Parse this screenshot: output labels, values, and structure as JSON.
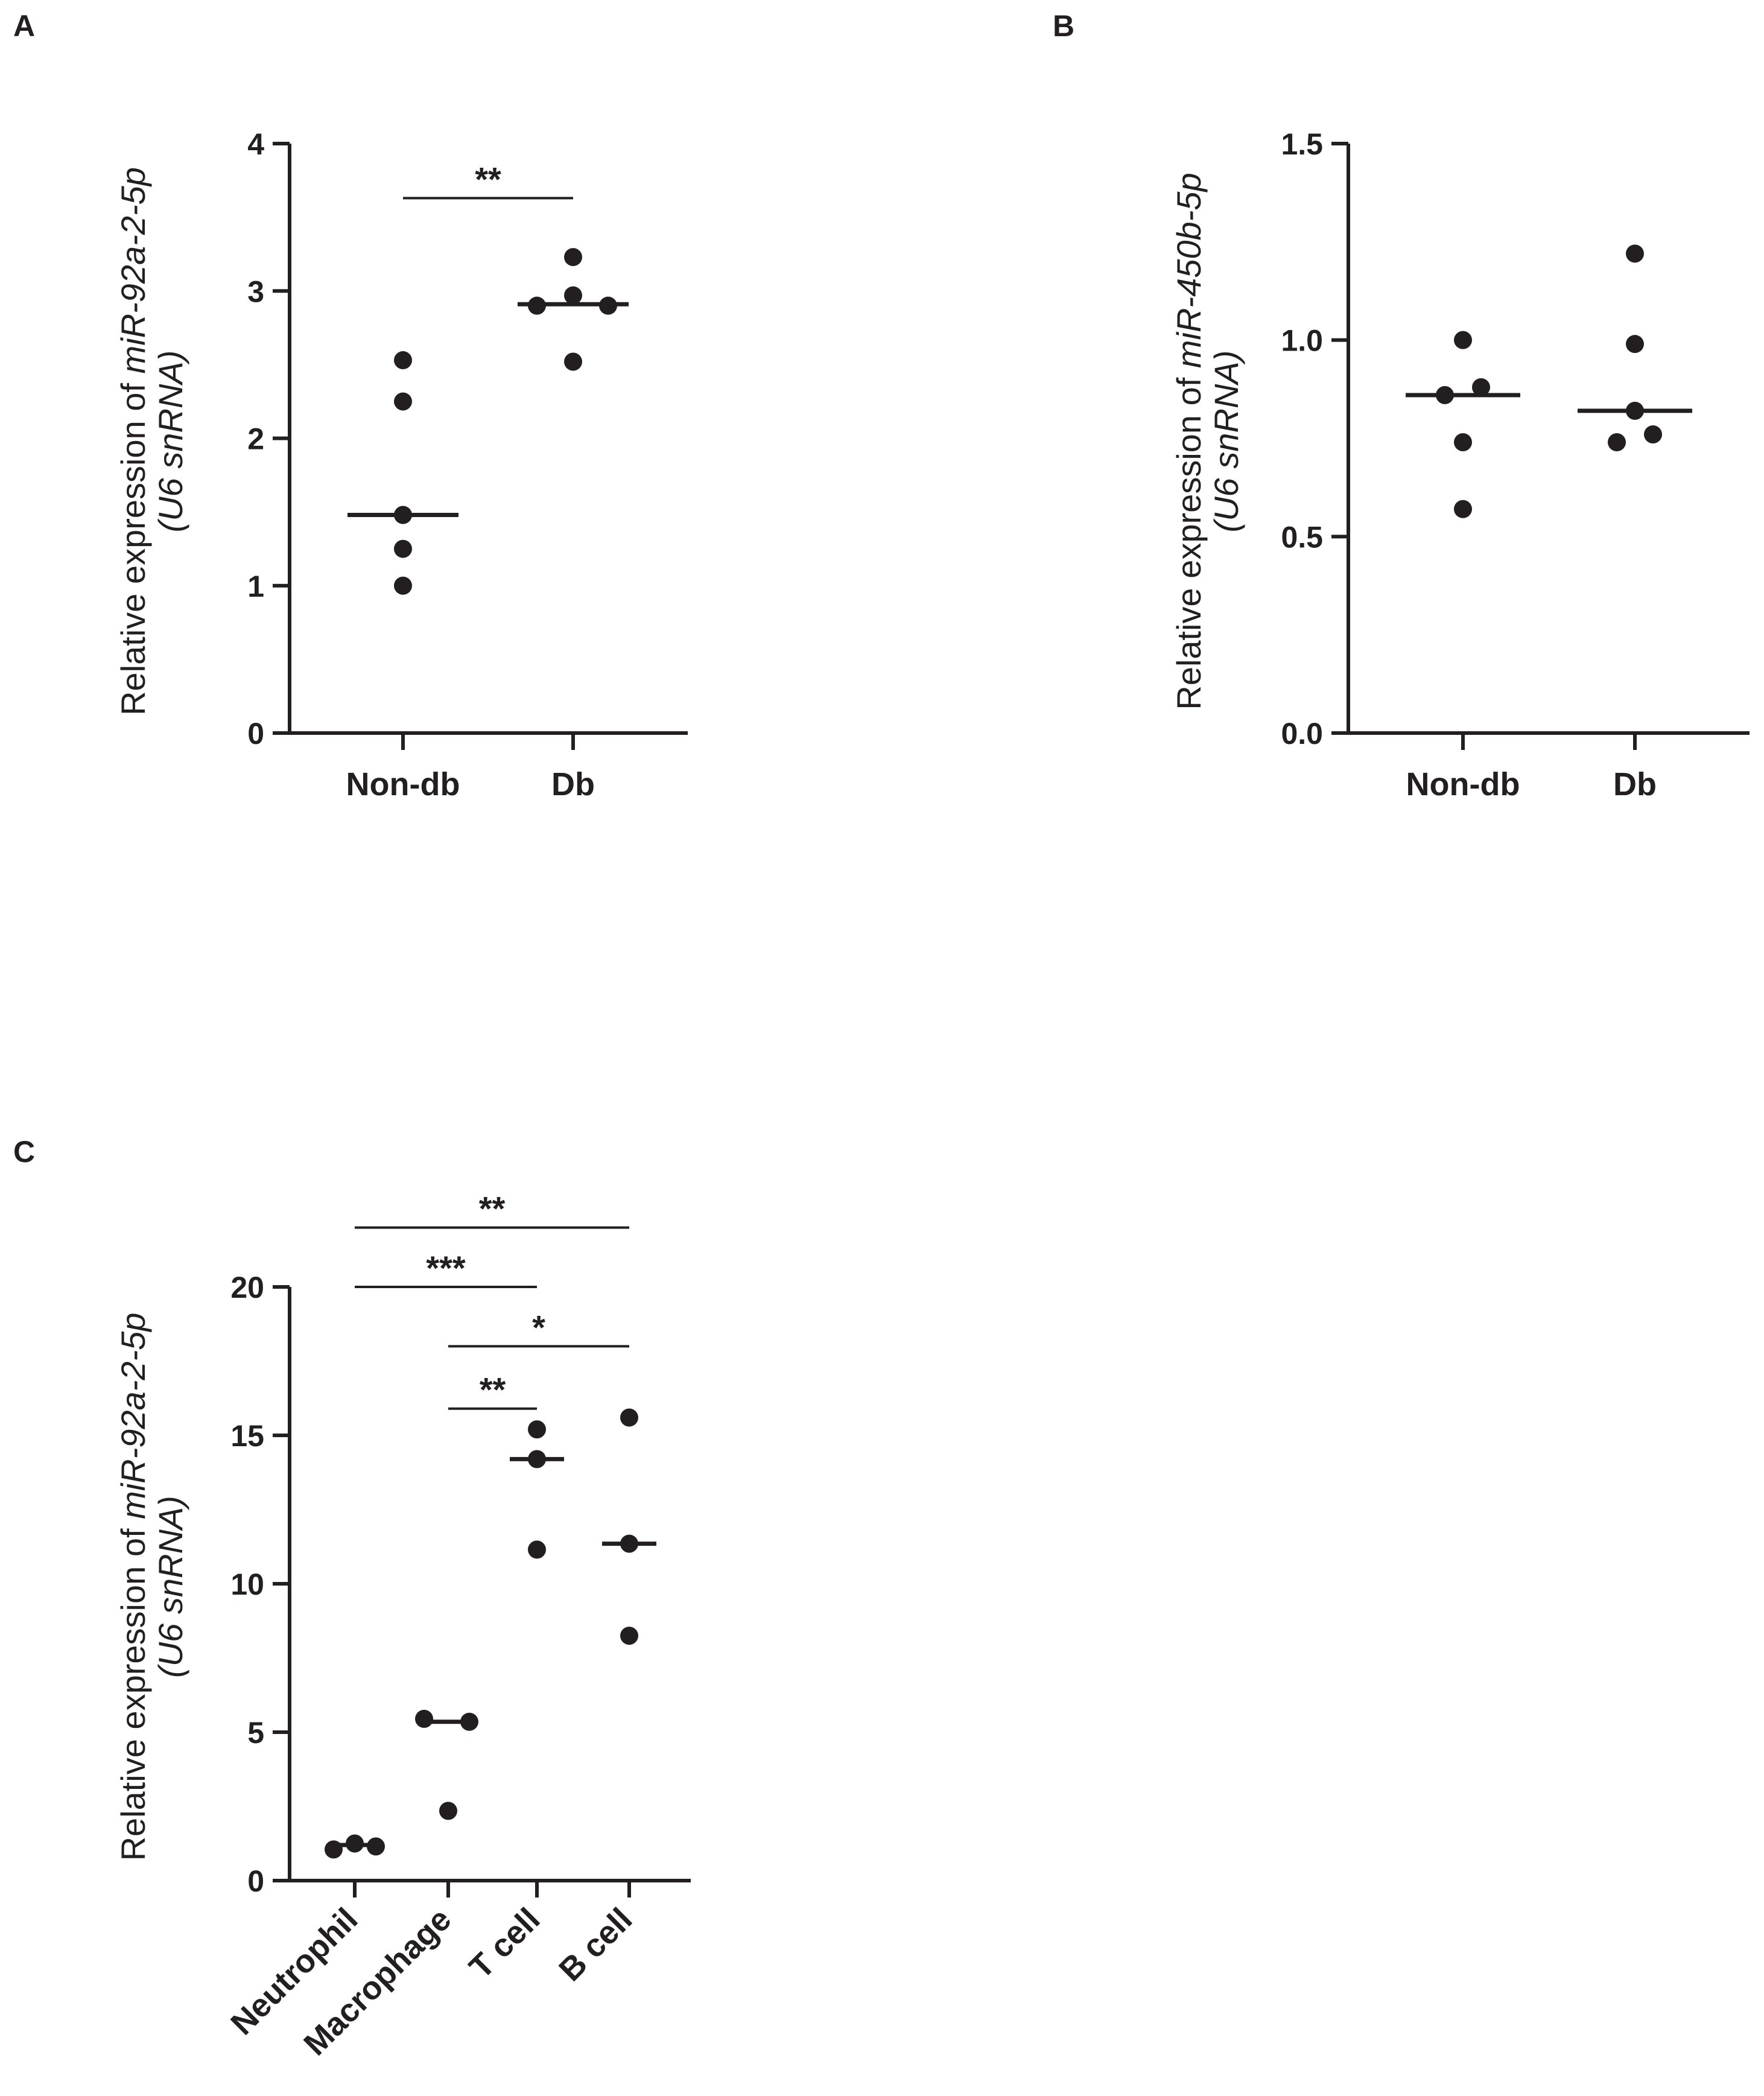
{
  "chart_data": [
    {
      "panel": "A",
      "type": "scatter",
      "categories": [
        "Non-db",
        "Db"
      ],
      "ylim": [
        0,
        4
      ],
      "yticks": [
        "0",
        "1",
        "2",
        "3",
        "4"
      ],
      "ylabel_prefix": "Relative expression of ",
      "ylabel_italic": "miR-92a-2-5p",
      "ylabel_line2": "(U6 snRNA)",
      "series": [
        {
          "name": "Non-db",
          "values": [
            1.0,
            1.25,
            1.48,
            2.25,
            2.53
          ],
          "median": 1.48
        },
        {
          "name": "Db",
          "values": [
            2.52,
            2.9,
            2.97,
            2.9,
            3.23
          ],
          "median": 2.91
        }
      ],
      "significance": [
        {
          "from": "Non-db",
          "to": "Db",
          "label": "**",
          "y": 3.63
        }
      ]
    },
    {
      "panel": "B",
      "type": "scatter",
      "categories": [
        "Non-db",
        "Db"
      ],
      "ylim": [
        0,
        1.5
      ],
      "yticks": [
        "0.0",
        "0.5",
        "1.0",
        "1.5"
      ],
      "ylabel_prefix": "Relative expression of ",
      "ylabel_italic": "miR-450b-5p",
      "ylabel_line2": "(U6 snRNA)",
      "series": [
        {
          "name": "Non-db",
          "values": [
            0.57,
            0.74,
            0.86,
            0.88,
            1.0
          ],
          "median": 0.86
        },
        {
          "name": "Db",
          "values": [
            0.74,
            0.76,
            0.82,
            0.99,
            1.22
          ],
          "median": 0.82
        }
      ],
      "significance": []
    },
    {
      "panel": "C",
      "type": "scatter",
      "categories": [
        "Neutrophil",
        "Macrophage",
        "T cell",
        "B cell"
      ],
      "ylim": [
        0,
        20
      ],
      "yticks": [
        "0",
        "5",
        "10",
        "15",
        "20"
      ],
      "ylabel_prefix": "Relative expression of ",
      "ylabel_italic": "miR-92a-2-5p",
      "ylabel_line2": "(U6 snRNA)",
      "series": [
        {
          "name": "Neutrophil",
          "values": [
            1.05,
            1.25,
            1.15
          ],
          "median": 1.2
        },
        {
          "name": "Macrophage",
          "values": [
            5.45,
            5.35,
            2.35
          ],
          "median": 5.35
        },
        {
          "name": "T cell",
          "values": [
            15.2,
            14.2,
            11.15
          ],
          "median": 14.2
        },
        {
          "name": "B cell",
          "values": [
            15.6,
            11.35,
            8.25
          ],
          "median": 11.35
        }
      ],
      "significance": [
        {
          "from": "Neutrophil",
          "to": "B cell",
          "label": "**",
          "y": 22.0
        },
        {
          "from": "Neutrophil",
          "to": "T cell",
          "label": "***",
          "y": 20.0
        },
        {
          "from": "Macrophage",
          "to": "B cell",
          "label": "*",
          "y": 18.0
        },
        {
          "from": "Macrophage",
          "to": "T cell",
          "label": "**",
          "y": 15.9
        }
      ]
    }
  ]
}
